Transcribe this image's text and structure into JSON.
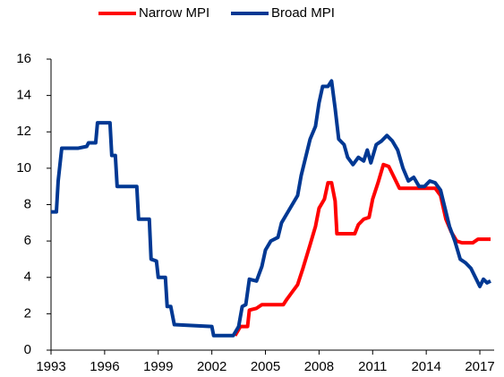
{
  "chart_data": {
    "type": "line",
    "xlim": [
      1993,
      2017.8
    ],
    "xticks": [
      1993,
      1996,
      1999,
      2002,
      2005,
      2008,
      2011,
      2014,
      2017
    ],
    "ylim": [
      0,
      16
    ],
    "yticks": [
      0,
      2,
      4,
      6,
      8,
      10,
      12,
      14,
      16
    ],
    "grid": false,
    "legend": "top",
    "series": [
      {
        "name": "Narrow MPI",
        "color": "#ff0000",
        "x": [
          2003.3,
          2003.6,
          2004.0,
          2004.1,
          2004.5,
          2004.8,
          2006.0,
          2006.2,
          2006.5,
          2006.8,
          2007.1,
          2007.5,
          2007.8,
          2008.0,
          2008.3,
          2008.5,
          2008.7,
          2008.9,
          2009.0,
          2010.0,
          2010.2,
          2010.5,
          2010.8,
          2011.0,
          2011.3,
          2011.6,
          2011.9,
          2012.2,
          2012.5,
          2014.5,
          2014.8,
          2015.1,
          2015.4,
          2015.7,
          2016.0,
          2016.6,
          2016.9,
          2017.6
        ],
        "values": [
          0.8,
          1.3,
          1.3,
          2.2,
          2.3,
          2.5,
          2.5,
          2.8,
          3.2,
          3.6,
          4.5,
          5.8,
          6.8,
          7.8,
          8.3,
          9.2,
          9.2,
          8.2,
          6.4,
          6.4,
          6.9,
          7.2,
          7.3,
          8.3,
          9.2,
          10.2,
          10.1,
          9.5,
          8.9,
          8.9,
          8.5,
          7.2,
          6.5,
          6.0,
          5.9,
          5.9,
          6.1,
          6.1
        ]
      },
      {
        "name": "Broad MPI",
        "color": "#003893",
        "x": [
          1993.0,
          1993.3,
          1993.4,
          1993.6,
          1994.5,
          1995.0,
          1995.1,
          1995.5,
          1995.6,
          1996.3,
          1996.4,
          1996.6,
          1996.7,
          1997.8,
          1997.9,
          1998.5,
          1998.6,
          1998.9,
          1999.0,
          1999.4,
          1999.5,
          1999.7,
          1999.9,
          2001.0,
          2002.0,
          2002.1,
          2003.2,
          2003.5,
          2003.7,
          2003.9,
          2004.1,
          2004.5,
          2004.8,
          2005.0,
          2005.3,
          2005.7,
          2005.9,
          2006.2,
          2006.5,
          2006.8,
          2007.0,
          2007.3,
          2007.5,
          2007.8,
          2008.0,
          2008.2,
          2008.5,
          2008.7,
          2008.9,
          2009.1,
          2009.4,
          2009.6,
          2009.9,
          2010.2,
          2010.5,
          2010.7,
          2010.9,
          2011.2,
          2011.5,
          2011.8,
          2012.1,
          2012.4,
          2012.7,
          2013.0,
          2013.3,
          2013.6,
          2013.9,
          2014.2,
          2014.5,
          2014.8,
          2015.0,
          2015.3,
          2015.6,
          2015.9,
          2016.2,
          2016.5,
          2016.8,
          2017.0,
          2017.2,
          2017.4,
          2017.6
        ],
        "values": [
          7.6,
          7.6,
          9.3,
          11.1,
          11.1,
          11.2,
          11.4,
          11.4,
          12.5,
          12.5,
          10.7,
          10.7,
          9.0,
          9.0,
          7.2,
          7.2,
          5.0,
          4.9,
          4.0,
          4.0,
          2.4,
          2.4,
          1.4,
          1.35,
          1.3,
          0.8,
          0.8,
          1.3,
          2.4,
          2.5,
          3.9,
          3.8,
          4.6,
          5.5,
          6.0,
          6.2,
          7.0,
          7.5,
          8.0,
          8.5,
          9.6,
          10.8,
          11.6,
          12.3,
          13.6,
          14.5,
          14.5,
          14.8,
          13.3,
          11.6,
          11.3,
          10.6,
          10.2,
          10.6,
          10.4,
          11.0,
          10.3,
          11.3,
          11.5,
          11.8,
          11.5,
          11.0,
          10.0,
          9.3,
          9.5,
          9.0,
          9.0,
          9.3,
          9.2,
          8.8,
          8.0,
          6.8,
          6.0,
          5.0,
          4.8,
          4.5,
          3.9,
          3.5,
          3.9,
          3.7,
          3.8
        ]
      }
    ]
  }
}
